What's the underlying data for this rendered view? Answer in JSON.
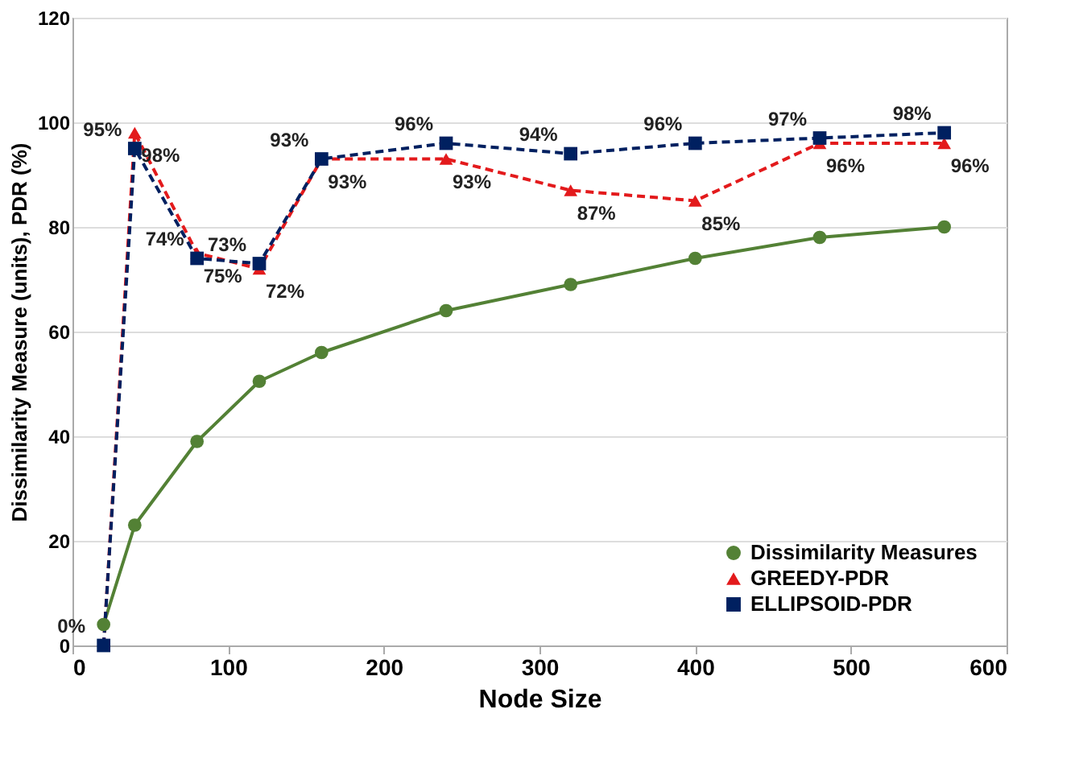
{
  "chart_data": {
    "type": "line",
    "xlabel": "Node Size",
    "ylabel": "Dissimilarity Measure (units),  PDR (%)",
    "x": [
      20,
      40,
      80,
      120,
      160,
      240,
      320,
      400,
      480,
      560
    ],
    "series": [
      {
        "name": "Dissimilarity Measures",
        "color": "#538135",
        "marker": "circle",
        "line_style": "solid",
        "values": [
          4,
          23,
          39,
          50.5,
          56,
          64,
          69,
          74,
          78,
          80
        ]
      },
      {
        "name": "GREEDY-PDR",
        "color": "#e31a1c",
        "marker": "triangle",
        "line_style": "dashed",
        "values": [
          0,
          98,
          75,
          72,
          93,
          93,
          87,
          85,
          96,
          96
        ],
        "value_labels": [
          null,
          "98%",
          "75%",
          "72%",
          "93%",
          "93%",
          "87%",
          "85%",
          "96%",
          "96%"
        ]
      },
      {
        "name": "ELLIPSOID-PDR",
        "color": "#002060",
        "marker": "square",
        "line_style": "dashed",
        "values": [
          0,
          95,
          74,
          73,
          93,
          96,
          94,
          96,
          97,
          98
        ],
        "value_labels": [
          "0%",
          "95%",
          "74%",
          "73%",
          "93%",
          "96%",
          "94%",
          "96%",
          "97%",
          "98%"
        ]
      }
    ],
    "xlim": [
      0,
      600
    ],
    "xticks": [
      0,
      100,
      200,
      300,
      400,
      500,
      600
    ],
    "ylim": [
      0,
      120
    ],
    "yticks": [
      0,
      20,
      40,
      60,
      80,
      100,
      120
    ],
    "grid": "y",
    "legend": "bottom right"
  }
}
